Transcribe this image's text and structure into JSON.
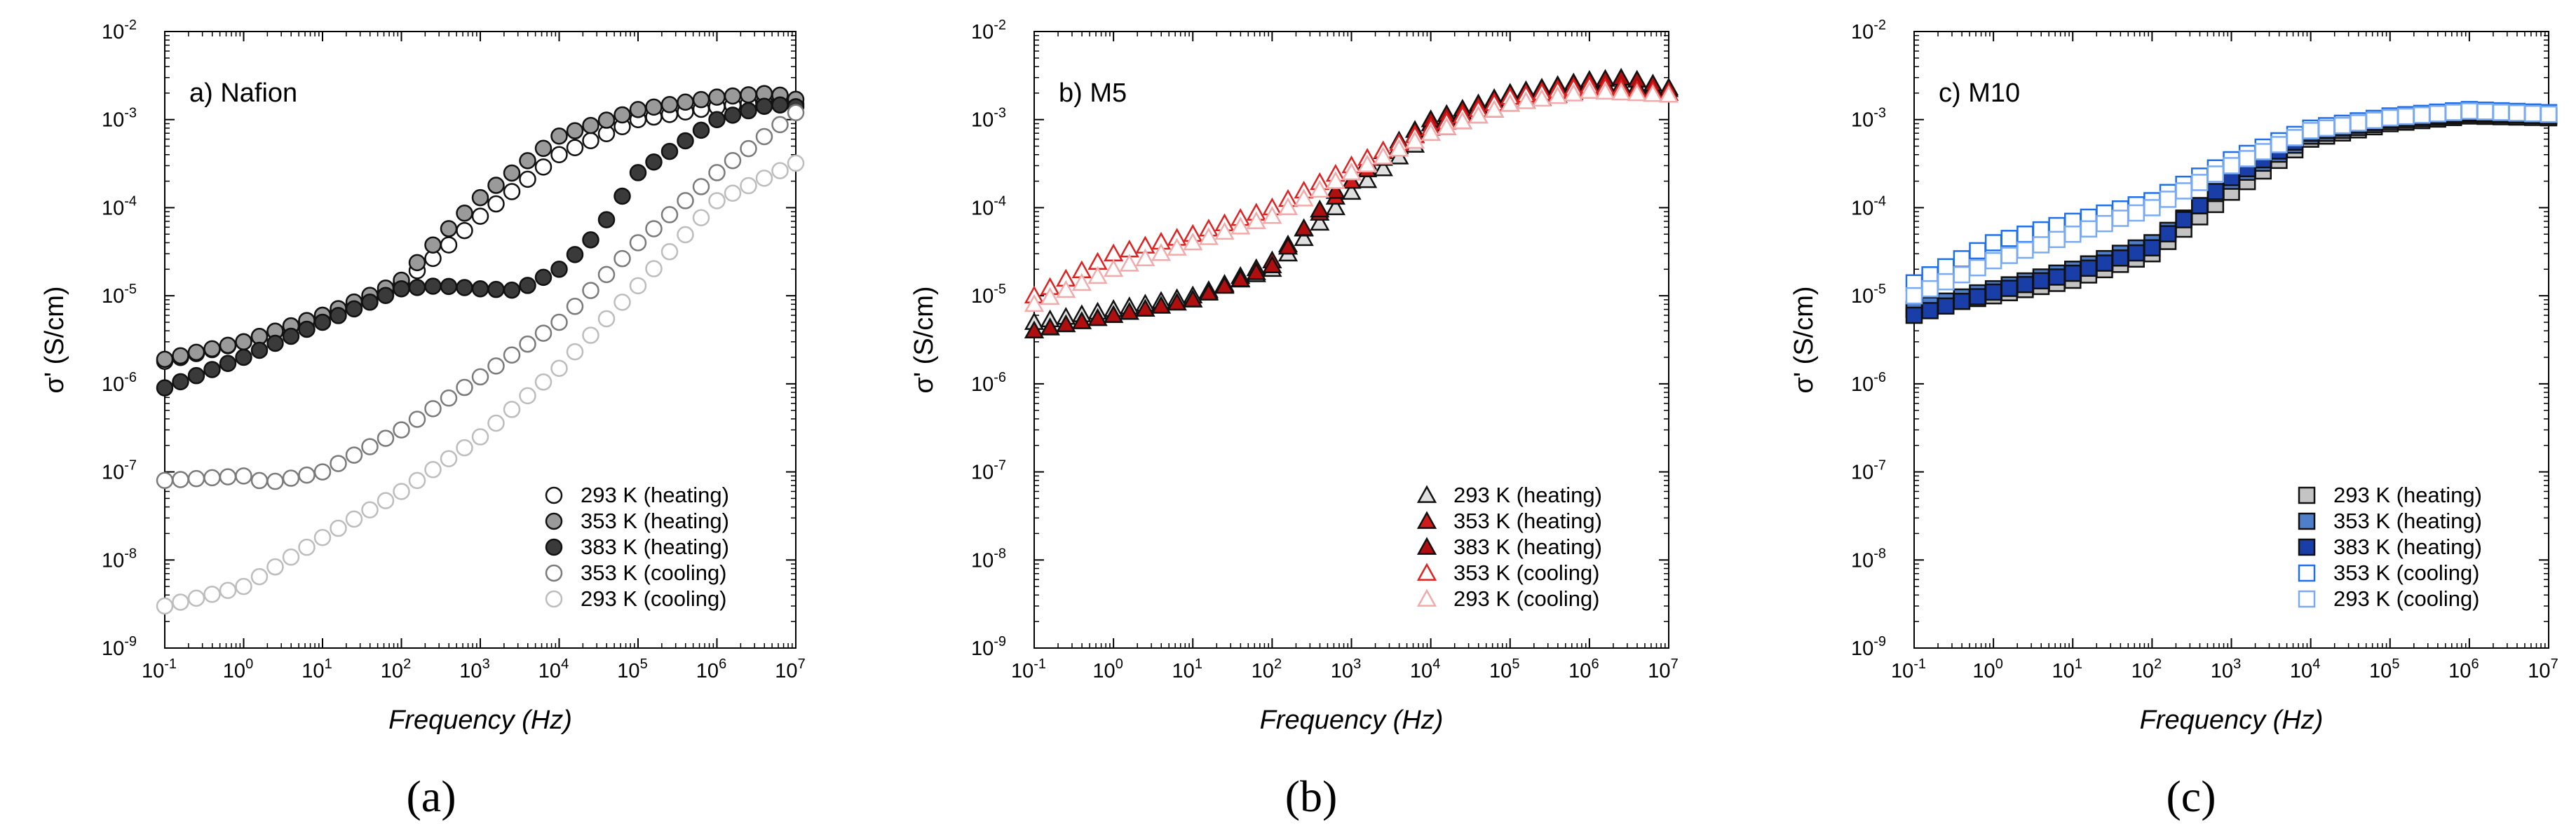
{
  "chart_data": [
    {
      "type": "scatter",
      "panel_id": "a",
      "title": "a) Nafion",
      "caption": "(a)",
      "xlabel": "Frequency (Hz)",
      "ylabel": "σ' (S/cm)",
      "xscale": "log",
      "yscale": "log",
      "xlim": [
        0.1,
        10000000
      ],
      "ylim": [
        1e-09,
        0.01
      ],
      "x_tick_exponents": [
        "-1",
        "0",
        "1",
        "2",
        "3",
        "4",
        "5",
        "6",
        "7"
      ],
      "y_tick_exponents": [
        "-9",
        "-8",
        "-7",
        "-6",
        "-5",
        "-4",
        "-3",
        "-2"
      ],
      "legend_position": "bottom-right",
      "series": [
        {
          "name": "293 K (heating)",
          "marker": "circle",
          "fill": "#ffffff",
          "stroke": "#111111",
          "points": [
            [
              0.1,
              1.8e-06
            ],
            [
              1,
              3e-06
            ],
            [
              10,
              6e-06
            ],
            [
              50,
              1e-05
            ],
            [
              100,
              1.4e-05
            ],
            [
              300,
              3e-05
            ],
            [
              1000,
              8e-05
            ],
            [
              10000,
              0.0004
            ],
            [
              100000,
              0.001
            ],
            [
              1000000,
              0.0014
            ],
            [
              5000000,
              0.0016
            ],
            [
              10000000,
              0.0015
            ]
          ]
        },
        {
          "name": "353 K (heating)",
          "marker": "circle",
          "fill": "#9a9a9a",
          "stroke": "#111111",
          "points": [
            [
              0.1,
              1.9e-06
            ],
            [
              1,
              3e-06
            ],
            [
              10,
              6e-06
            ],
            [
              50,
              1.1e-05
            ],
            [
              100,
              1.5e-05
            ],
            [
              300,
              4.5e-05
            ],
            [
              1000,
              0.00013
            ],
            [
              10000,
              0.00065
            ],
            [
              100000,
              0.0013
            ],
            [
              1000000,
              0.0018
            ],
            [
              5000000,
              0.002
            ],
            [
              10000000,
              0.0017
            ]
          ]
        },
        {
          "name": "383 K (heating)",
          "marker": "circle",
          "fill": "#3a3a3a",
          "stroke": "#111111",
          "points": [
            [
              0.1,
              9e-07
            ],
            [
              1,
              2e-06
            ],
            [
              10,
              5e-06
            ],
            [
              100,
              1.2e-05
            ],
            [
              300,
              1.3e-05
            ],
            [
              1000,
              1.2e-05
            ],
            [
              3000,
              1.15e-05
            ],
            [
              10000,
              2e-05
            ],
            [
              30000,
              5e-05
            ],
            [
              100000,
              0.00025
            ],
            [
              1000000,
              0.001
            ],
            [
              5000000,
              0.0015
            ],
            [
              10000000,
              0.0014
            ]
          ]
        },
        {
          "name": "353 K (cooling)",
          "marker": "circle",
          "fill": "#ffffff",
          "stroke": "#7a7a7a",
          "points": [
            [
              0.1,
              8e-08
            ],
            [
              1,
              9e-08
            ],
            [
              2,
              7.5e-08
            ],
            [
              10,
              1e-07
            ],
            [
              100,
              3e-07
            ],
            [
              1000,
              1.2e-06
            ],
            [
              10000,
              5e-06
            ],
            [
              100000,
              4e-05
            ],
            [
              1000000,
              0.00025
            ],
            [
              10000000,
              0.0012
            ]
          ]
        },
        {
          "name": "293 K (cooling)",
          "marker": "circle",
          "fill": "#ffffff",
          "stroke": "#bdbdbd",
          "points": [
            [
              0.1,
              3e-09
            ],
            [
              1,
              5e-09
            ],
            [
              10,
              1.8e-08
            ],
            [
              100,
              6e-08
            ],
            [
              1000,
              2.5e-07
            ],
            [
              10000,
              1.5e-06
            ],
            [
              100000,
              1.3e-05
            ],
            [
              1000000,
              0.00012
            ],
            [
              10000000,
              0.00032
            ]
          ]
        }
      ]
    },
    {
      "type": "scatter",
      "panel_id": "b",
      "title": "b) M5",
      "caption": "(b)",
      "xlabel": "Frequency (Hz)",
      "ylabel": "σ' (S/cm)",
      "xscale": "log",
      "yscale": "log",
      "xlim": [
        0.1,
        10000000
      ],
      "ylim": [
        1e-09,
        0.01
      ],
      "x_tick_exponents": [
        "-1",
        "0",
        "1",
        "2",
        "3",
        "4",
        "5",
        "6",
        "7"
      ],
      "y_tick_exponents": [
        "-9",
        "-8",
        "-7",
        "-6",
        "-5",
        "-4",
        "-3",
        "-2"
      ],
      "legend_position": "bottom-right",
      "series": [
        {
          "name": "293 K (heating)",
          "marker": "triangle",
          "fill": "#e0e0e0",
          "stroke": "#111111",
          "points": [
            [
              0.1,
              5e-06
            ],
            [
              1,
              7e-06
            ],
            [
              10,
              1e-05
            ],
            [
              100,
              2e-05
            ],
            [
              1000,
              0.00015
            ],
            [
              10000,
              0.0007
            ],
            [
              100000,
              0.0015
            ],
            [
              1000000,
              0.0022
            ],
            [
              10000000,
              0.002
            ]
          ]
        },
        {
          "name": "353 K (heating)",
          "marker": "triangle",
          "fill": "#d11a1a",
          "stroke": "#111111",
          "points": [
            [
              0.1,
              4e-06
            ],
            [
              1,
              6e-06
            ],
            [
              10,
              9e-06
            ],
            [
              100,
              2.5e-05
            ],
            [
              1000,
              0.0002
            ],
            [
              10000,
              0.0009
            ],
            [
              100000,
              0.0019
            ],
            [
              1000000,
              0.0026
            ],
            [
              10000000,
              0.0022
            ]
          ]
        },
        {
          "name": "383 K (heating)",
          "marker": "triangle",
          "fill": "#b10f0f",
          "stroke": "#111111",
          "points": [
            [
              0.1,
              4e-06
            ],
            [
              1,
              6e-06
            ],
            [
              10,
              9e-06
            ],
            [
              100,
              2.2e-05
            ],
            [
              1000,
              0.00025
            ],
            [
              10000,
              0.001
            ],
            [
              100000,
              0.002
            ],
            [
              1000000,
              0.0028
            ],
            [
              3000000,
              0.003
            ],
            [
              10000000,
              0.0023
            ]
          ]
        },
        {
          "name": "353 K (cooling)",
          "marker": "triangle",
          "fill": "#ffffff",
          "stroke": "#e32020",
          "points": [
            [
              0.1,
              1e-05
            ],
            [
              1,
              3e-05
            ],
            [
              10,
              5e-05
            ],
            [
              100,
              0.0001
            ],
            [
              1000,
              0.0003
            ],
            [
              10000,
              0.0008
            ],
            [
              100000,
              0.0018
            ],
            [
              1000000,
              0.0024
            ],
            [
              10000000,
              0.002
            ]
          ]
        },
        {
          "name": "293 K (cooling)",
          "marker": "triangle",
          "fill": "#ffffff",
          "stroke": "#f2aaaa",
          "points": [
            [
              0.1,
              8e-06
            ],
            [
              1,
              2e-05
            ],
            [
              10,
              4e-05
            ],
            [
              100,
              8e-05
            ],
            [
              1000,
              0.00025
            ],
            [
              10000,
              0.0007
            ],
            [
              100000,
              0.0015
            ],
            [
              1000000,
              0.0021
            ],
            [
              10000000,
              0.0019
            ]
          ]
        }
      ]
    },
    {
      "type": "scatter",
      "panel_id": "c",
      "title": "c) M10",
      "caption": "(c)",
      "xlabel": "Frequency (Hz)",
      "ylabel": "σ' (S/cm)",
      "xscale": "log",
      "yscale": "log",
      "xlim": [
        0.1,
        10000000
      ],
      "ylim": [
        1e-09,
        0.01
      ],
      "x_tick_exponents": [
        "-1",
        "0",
        "1",
        "2",
        "3",
        "4",
        "5",
        "6",
        "7"
      ],
      "y_tick_exponents": [
        "-9",
        "-8",
        "-7",
        "-6",
        "-5",
        "-4",
        "-3",
        "-2"
      ],
      "legend_position": "bottom-right",
      "series": [
        {
          "name": "293 K (heating)",
          "marker": "square",
          "fill": "#c4c4c4",
          "stroke": "#111111",
          "points": [
            [
              0.1,
              7e-06
            ],
            [
              1,
              1e-05
            ],
            [
              10,
              1.5e-05
            ],
            [
              100,
              3e-05
            ],
            [
              1000,
              0.00015
            ],
            [
              10000,
              0.0006
            ],
            [
              100000,
              0.0009
            ],
            [
              1000000,
              0.0011
            ],
            [
              10000000,
              0.00105
            ]
          ]
        },
        {
          "name": "353 K (heating)",
          "marker": "square",
          "fill": "#4f7fc8",
          "stroke": "#111111",
          "points": [
            [
              0.1,
              7e-06
            ],
            [
              1,
              1.2e-05
            ],
            [
              10,
              2e-05
            ],
            [
              100,
              4e-05
            ],
            [
              1000,
              0.0002
            ],
            [
              10000,
              0.00065
            ],
            [
              100000,
              0.00095
            ],
            [
              1000000,
              0.00115
            ],
            [
              10000000,
              0.0011
            ]
          ]
        },
        {
          "name": "383 K (heating)",
          "marker": "square",
          "fill": "#1a3ea8",
          "stroke": "#111111",
          "points": [
            [
              0.1,
              6e-06
            ],
            [
              1,
              1.1e-05
            ],
            [
              10,
              1.8e-05
            ],
            [
              100,
              3.5e-05
            ],
            [
              1000,
              0.00022
            ],
            [
              10000,
              0.0007
            ],
            [
              100000,
              0.001
            ],
            [
              1000000,
              0.0012
            ],
            [
              10000000,
              0.0011
            ]
          ]
        },
        {
          "name": "353 K (cooling)",
          "marker": "square",
          "fill": "#ffffff",
          "stroke": "#1e6fe8",
          "points": [
            [
              0.1,
              1.4e-05
            ],
            [
              1,
              4e-05
            ],
            [
              10,
              7e-05
            ],
            [
              100,
              0.00012
            ],
            [
              1000,
              0.00035
            ],
            [
              10000,
              0.0008
            ],
            [
              100000,
              0.0011
            ],
            [
              1000000,
              0.0013
            ],
            [
              10000000,
              0.0012
            ]
          ]
        },
        {
          "name": "293 K (cooling)",
          "marker": "square",
          "fill": "#ffffff",
          "stroke": "#7aaaf2",
          "points": [
            [
              0.1,
              1e-05
            ],
            [
              1,
              2.5e-05
            ],
            [
              10,
              5e-05
            ],
            [
              100,
              0.0001
            ],
            [
              1000,
              0.0003
            ],
            [
              10000,
              0.00075
            ],
            [
              100000,
              0.00105
            ],
            [
              1000000,
              0.00125
            ],
            [
              10000000,
              0.00115
            ]
          ]
        }
      ]
    }
  ]
}
